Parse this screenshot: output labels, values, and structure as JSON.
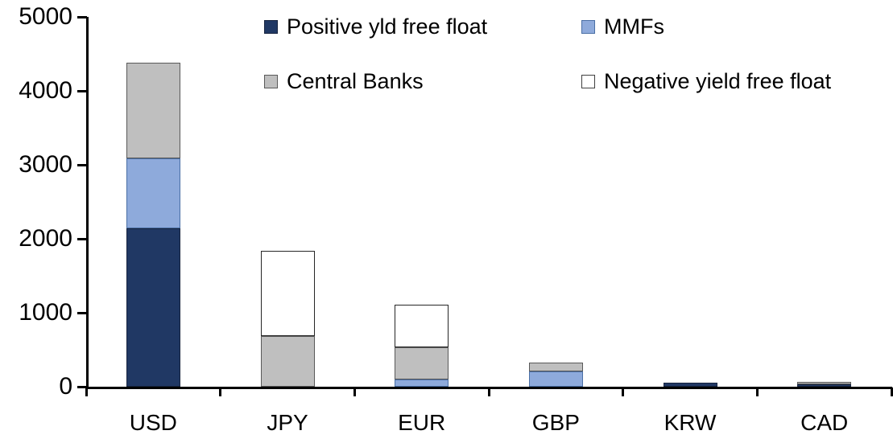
{
  "chart_data": {
    "type": "bar",
    "stacked": true,
    "categories": [
      "USD",
      "JPY",
      "EUR",
      "GBP",
      "KRW",
      "CAD"
    ],
    "series": [
      {
        "name": "Positive yld free float",
        "color": "#203864",
        "border": "#17243f",
        "values": [
          2140,
          0,
          0,
          0,
          50,
          30
        ]
      },
      {
        "name": "MMFs",
        "color": "#8EAADB",
        "border": "#4a6fa5",
        "values": [
          950,
          0,
          100,
          210,
          0,
          0
        ]
      },
      {
        "name": "Central Banks",
        "color": "#BFBFBF",
        "border": "#595959",
        "values": [
          1290,
          690,
          430,
          120,
          0,
          30
        ]
      },
      {
        "name": "Negative yield free float",
        "color": "#FFFFFF",
        "border": "#262626",
        "values": [
          0,
          1150,
          580,
          0,
          0,
          0
        ]
      }
    ],
    "title": "",
    "xlabel": "",
    "ylabel": "",
    "ylim": [
      0,
      5000
    ],
    "yticks": [
      0,
      1000,
      2000,
      3000,
      4000,
      5000
    ],
    "grid": false,
    "legend_position": "top"
  },
  "legend": {
    "items": [
      {
        "label": "Positive yld free float",
        "color": "#203864",
        "border": "#17243f"
      },
      {
        "label": "MMFs",
        "color": "#8EAADB",
        "border": "#4a6fa5"
      },
      {
        "label": "Central Banks",
        "color": "#BFBFBF",
        "border": "#595959"
      },
      {
        "label": "Negative yield free float",
        "color": "#FFFFFF",
        "border": "#404040"
      }
    ]
  }
}
